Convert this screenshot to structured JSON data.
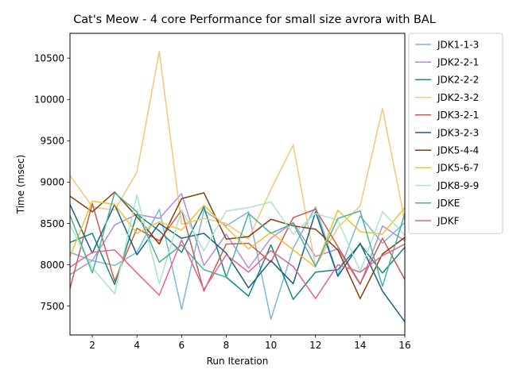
{
  "chart_data": {
    "type": "line",
    "title": "Cat's Meow - 4 core Performance for small size avrora with BAL",
    "xlabel": "Run Iteration",
    "ylabel": "Time (msec)",
    "xlim": [
      1,
      16
    ],
    "ylim": [
      7150,
      10800
    ],
    "xticks": [
      2,
      4,
      6,
      8,
      10,
      12,
      14,
      16
    ],
    "yticks": [
      7500,
      8000,
      8500,
      9000,
      9500,
      10000,
      10500
    ],
    "grid": false,
    "legend_position": "right",
    "x": [
      1,
      2,
      3,
      4,
      5,
      6,
      7,
      8,
      9,
      10,
      11,
      12,
      13,
      14,
      15,
      16
    ],
    "series": [
      {
        "name": "JDK1-1-3",
        "color": "#7eb5df",
        "values": [
          8150,
          8050,
          7990,
          8150,
          8670,
          7460,
          8660,
          8470,
          8640,
          7340,
          8200,
          8700,
          7870,
          8590,
          8260,
          8510
        ]
      },
      {
        "name": "JDK2-2-1",
        "color": "#b28fd3",
        "values": [
          7880,
          8050,
          8480,
          8610,
          8560,
          8860,
          7990,
          8370,
          7960,
          8320,
          8510,
          8100,
          8190,
          7760,
          8470,
          8290
        ]
      },
      {
        "name": "JDK2-2-2",
        "color": "#17877b",
        "values": [
          8270,
          8380,
          7760,
          8610,
          8410,
          8150,
          8700,
          7850,
          7620,
          8240,
          7580,
          7910,
          7940,
          8250,
          7900,
          8210
        ]
      },
      {
        "name": "JDK2-3-2",
        "color": "#f4c57a",
        "values": [
          9080,
          8700,
          8660,
          9120,
          10580,
          8490,
          8560,
          8500,
          8310,
          8910,
          9450,
          7980,
          8450,
          8710,
          9890,
          8530
        ]
      },
      {
        "name": "JDK3-2-1",
        "color": "#cc5a4e",
        "values": [
          7710,
          8740,
          7800,
          8440,
          8290,
          8660,
          7680,
          8250,
          8260,
          8030,
          8570,
          8670,
          8220,
          7770,
          8320,
          7820
        ]
      },
      {
        "name": "JDK3-2-3",
        "color": "#1a5f85",
        "values": [
          8730,
          8140,
          8730,
          8120,
          8500,
          8320,
          8380,
          8140,
          7720,
          8050,
          7770,
          8640,
          7860,
          8260,
          7680,
          7310
        ]
      },
      {
        "name": "JDK5-4-4",
        "color": "#8b3c0c",
        "values": [
          8830,
          8640,
          8880,
          8580,
          8250,
          8800,
          8870,
          8310,
          8340,
          8550,
          8470,
          8430,
          8180,
          7590,
          8130,
          8330
        ]
      },
      {
        "name": "JDK5-6-7",
        "color": "#f2c12e",
        "values": [
          8100,
          8770,
          8730,
          8380,
          8520,
          8420,
          8720,
          8450,
          8190,
          8390,
          8180,
          7970,
          8660,
          8400,
          8370,
          8690
        ]
      },
      {
        "name": "JDK8-9-9",
        "color": "#a8e6c5",
        "values": [
          8480,
          7960,
          7650,
          8840,
          7770,
          8660,
          8170,
          8650,
          8690,
          8760,
          8370,
          8620,
          8540,
          7920,
          8640,
          8360
        ]
      },
      {
        "name": "JDKE",
        "color": "#47b39d",
        "values": [
          8600,
          7900,
          8870,
          8640,
          8030,
          8240,
          7940,
          7850,
          8620,
          8380,
          8500,
          7980,
          8560,
          8650,
          7740,
          8620
        ]
      },
      {
        "name": "JDKF",
        "color": "#e8608f",
        "values": [
          7970,
          8150,
          8180,
          7900,
          7630,
          8300,
          7700,
          8120,
          7910,
          8170,
          7980,
          7590,
          8000,
          7910,
          8110,
          8250
        ]
      }
    ]
  }
}
